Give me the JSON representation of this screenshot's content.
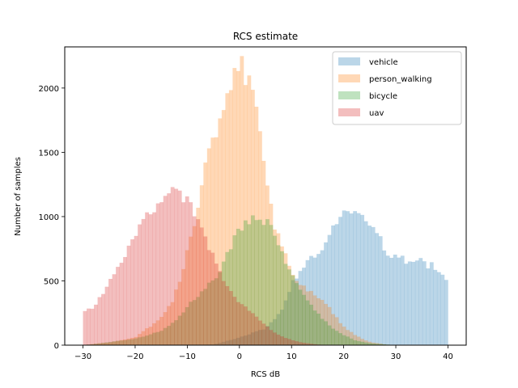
{
  "chart_data": {
    "type": "histogram",
    "title": "RCS estimate",
    "xlabel": "RCS dB",
    "ylabel": "Number of samples",
    "xlim": [
      -33.5,
      43.5
    ],
    "ylim": [
      0,
      2320
    ],
    "xticks": [
      -30,
      -20,
      -10,
      0,
      10,
      20,
      30,
      40
    ],
    "yticks": [
      0,
      500,
      1000,
      1500,
      2000
    ],
    "legend": "top-right",
    "bin_width": 0.7,
    "x_start": -30,
    "series": [
      {
        "name": "vehicle",
        "color": "#1f77b4",
        "alpha": 0.3,
        "points": [
          [
            -30,
            0
          ],
          [
            -5,
            5
          ],
          [
            0,
            60
          ],
          [
            5,
            130
          ],
          [
            8,
            260
          ],
          [
            10,
            480
          ],
          [
            12,
            600
          ],
          [
            14,
            680
          ],
          [
            16,
            740
          ],
          [
            18,
            900
          ],
          [
            20,
            1060
          ],
          [
            21,
            1080
          ],
          [
            22,
            1040
          ],
          [
            23,
            1060
          ],
          [
            24,
            1000
          ],
          [
            25,
            960
          ],
          [
            26,
            880
          ],
          [
            27,
            820
          ],
          [
            28,
            720
          ],
          [
            29,
            680
          ],
          [
            30,
            690
          ],
          [
            31,
            680
          ],
          [
            32,
            650
          ],
          [
            33,
            680
          ],
          [
            34,
            640
          ],
          [
            35,
            660
          ],
          [
            36,
            600
          ],
          [
            37,
            640
          ],
          [
            38,
            560
          ],
          [
            39,
            540
          ],
          [
            40,
            500
          ]
        ]
      },
      {
        "name": "person_walking",
        "color": "#ff7f0e",
        "alpha": 0.3,
        "points": [
          [
            -30,
            0
          ],
          [
            -25,
            20
          ],
          [
            -20,
            60
          ],
          [
            -16,
            180
          ],
          [
            -13,
            320
          ],
          [
            -11,
            560
          ],
          [
            -10,
            760
          ],
          [
            -8,
            1050
          ],
          [
            -7,
            1300
          ],
          [
            -6,
            1460
          ],
          [
            -5,
            1600
          ],
          [
            -4,
            1720
          ],
          [
            -3,
            1860
          ],
          [
            -2,
            1980
          ],
          [
            -1,
            2080
          ],
          [
            0,
            2220
          ],
          [
            1,
            2120
          ],
          [
            2,
            2000
          ],
          [
            3,
            1860
          ],
          [
            4,
            1600
          ],
          [
            5,
            1340
          ],
          [
            6,
            1100
          ],
          [
            7,
            880
          ],
          [
            9,
            700
          ],
          [
            10,
            560
          ],
          [
            11,
            500
          ],
          [
            13,
            430
          ],
          [
            15,
            380
          ],
          [
            17,
            300
          ],
          [
            19,
            190
          ],
          [
            21,
            110
          ],
          [
            23,
            60
          ],
          [
            25,
            25
          ],
          [
            28,
            5
          ],
          [
            30,
            0
          ]
        ]
      },
      {
        "name": "bicycle",
        "color": "#2ca02c",
        "alpha": 0.3,
        "points": [
          [
            -30,
            0
          ],
          [
            -20,
            50
          ],
          [
            -15,
            110
          ],
          [
            -12,
            200
          ],
          [
            -10,
            300
          ],
          [
            -8,
            380
          ],
          [
            -6,
            460
          ],
          [
            -4,
            560
          ],
          [
            -3,
            660
          ],
          [
            -2,
            740
          ],
          [
            -1,
            830
          ],
          [
            0,
            890
          ],
          [
            1,
            940
          ],
          [
            2,
            970
          ],
          [
            3,
            1000
          ],
          [
            4,
            990
          ],
          [
            5,
            960
          ],
          [
            6,
            910
          ],
          [
            7,
            840
          ],
          [
            8,
            740
          ],
          [
            9,
            640
          ],
          [
            10,
            550
          ],
          [
            11,
            480
          ],
          [
            12,
            400
          ],
          [
            14,
            300
          ],
          [
            16,
            200
          ],
          [
            18,
            130
          ],
          [
            20,
            80
          ],
          [
            22,
            40
          ],
          [
            25,
            15
          ],
          [
            30,
            0
          ]
        ]
      },
      {
        "name": "uav",
        "color": "#d62728",
        "alpha": 0.3,
        "points": [
          [
            -30,
            260
          ],
          [
            -28,
            300
          ],
          [
            -26,
            420
          ],
          [
            -24,
            550
          ],
          [
            -22,
            700
          ],
          [
            -20,
            870
          ],
          [
            -18,
            1000
          ],
          [
            -16,
            1070
          ],
          [
            -14,
            1150
          ],
          [
            -13,
            1220
          ],
          [
            -11,
            1170
          ],
          [
            -10,
            1120
          ],
          [
            -9,
            1060
          ],
          [
            -8,
            960
          ],
          [
            -7,
            860
          ],
          [
            -6,
            760
          ],
          [
            -5,
            680
          ],
          [
            -4,
            580
          ],
          [
            -3,
            490
          ],
          [
            -2,
            430
          ],
          [
            -1,
            370
          ],
          [
            0,
            330
          ],
          [
            1,
            300
          ],
          [
            2,
            270
          ],
          [
            3,
            230
          ],
          [
            4,
            190
          ],
          [
            5,
            150
          ],
          [
            6,
            120
          ],
          [
            7,
            95
          ],
          [
            8,
            70
          ],
          [
            10,
            40
          ],
          [
            12,
            20
          ],
          [
            15,
            5
          ],
          [
            18,
            0
          ]
        ]
      }
    ]
  }
}
